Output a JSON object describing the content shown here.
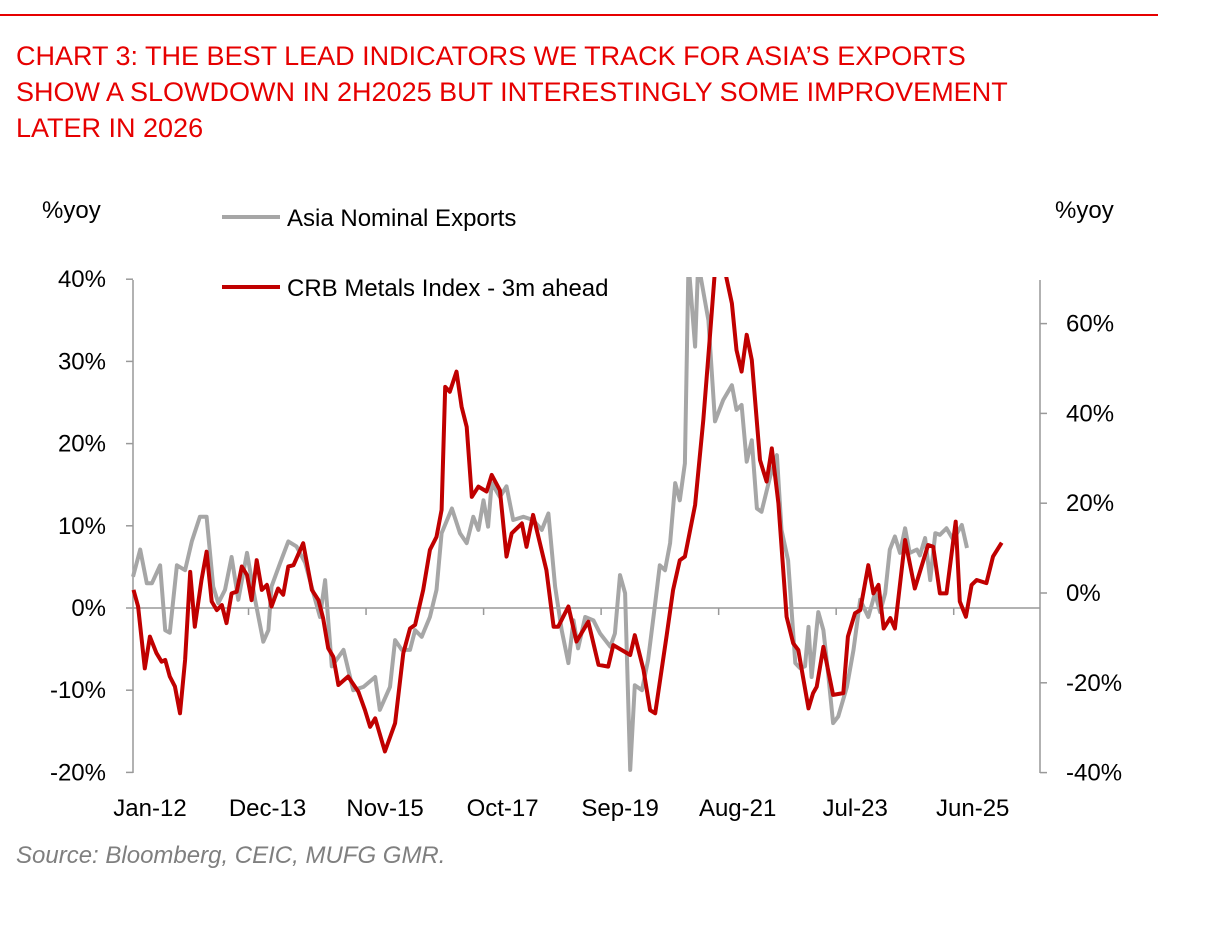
{
  "title_lines": [
    "CHART 3: THE BEST LEAD INDICATORS WE TRACK FOR ASIA’S EXPORTS",
    "SHOW A SLOWDOWN IN 2H2025 BUT INTERESTINGLY SOME IMPROVEMENT",
    "LATER IN 2026"
  ],
  "source": "Source: Bloomberg, CEIC, MUFG GMR.",
  "colors": {
    "accent": "#e60000",
    "gray_series": "#a6a6a6",
    "red_series": "#c00000",
    "axis": "#999999"
  },
  "chart_data": {
    "type": "line",
    "title": "CHART 3: THE BEST LEAD INDICATORS WE TRACK FOR ASIA’S EXPORTS SHOW A SLOWDOWN IN 2H2025 BUT INTERESTINGLY SOME IMPROVEMENT LATER IN 2026",
    "x_unit": "months since Jan-12",
    "x_tick_labels": [
      "Jan-12",
      "Dec-13",
      "Nov-15",
      "Oct-17",
      "Sep-19",
      "Aug-21",
      "Jul-23",
      "Jun-25"
    ],
    "ylabel_left": "%yoy",
    "ylabel_right": "%yoy",
    "ylim_left": [
      -20,
      40
    ],
    "ylim_right": [
      -40,
      70
    ],
    "y_ticks_left": [
      "-20%",
      "-10%",
      "0%",
      "10%",
      "20%",
      "30%",
      "40%"
    ],
    "y_ticks_right": [
      "-40%",
      "-20%",
      "0%",
      "20%",
      "40%",
      "60%"
    ],
    "legend_position": "top-left",
    "grid": false,
    "series": [
      {
        "name": "Asia Nominal Exports",
        "axis": "left",
        "color": "#a6a6a6",
        "points": [
          [
            0,
            3.8
          ],
          [
            1.4,
            7.1
          ],
          [
            2.7,
            3.0
          ],
          [
            3.7,
            3.0
          ],
          [
            5.3,
            5.2
          ],
          [
            6.3,
            -2.7
          ],
          [
            7.2,
            -3.0
          ],
          [
            8.6,
            5.2
          ],
          [
            10.2,
            4.6
          ],
          [
            11.5,
            8.1
          ],
          [
            13.1,
            11.1
          ],
          [
            14.4,
            11.1
          ],
          [
            15.7,
            2.6
          ],
          [
            16.7,
            0.6
          ],
          [
            18.0,
            2.2
          ],
          [
            19.3,
            6.2
          ],
          [
            20.6,
            1.0
          ],
          [
            22.3,
            6.7
          ],
          [
            23.9,
            1.0
          ],
          [
            25.5,
            -4.1
          ],
          [
            26.5,
            -2.7
          ],
          [
            27.1,
            2.6
          ],
          [
            28.8,
            5.5
          ],
          [
            30.4,
            8.1
          ],
          [
            32.0,
            7.5
          ],
          [
            33.7,
            5.5
          ],
          [
            35.3,
            1.8
          ],
          [
            36.6,
            -1.1
          ],
          [
            37.6,
            3.4
          ],
          [
            38.9,
            -7.1
          ],
          [
            41.2,
            -5.1
          ],
          [
            43.1,
            -10.0
          ],
          [
            45.1,
            -9.6
          ],
          [
            47.4,
            -8.4
          ],
          [
            48.3,
            -12.4
          ],
          [
            50.3,
            -9.6
          ],
          [
            51.3,
            -3.9
          ],
          [
            52.6,
            -5.1
          ],
          [
            54.2,
            -5.1
          ],
          [
            55.2,
            -2.7
          ],
          [
            56.5,
            -3.5
          ],
          [
            58.1,
            -1.1
          ],
          [
            59.4,
            2.2
          ],
          [
            60.4,
            9.1
          ],
          [
            62.4,
            12.1
          ],
          [
            64.0,
            9.1
          ],
          [
            65.3,
            7.9
          ],
          [
            66.6,
            11.1
          ],
          [
            67.6,
            9.5
          ],
          [
            68.6,
            13.1
          ],
          [
            69.5,
            9.9
          ],
          [
            70.2,
            15.2
          ],
          [
            71.8,
            13.5
          ],
          [
            73.1,
            14.8
          ],
          [
            74.4,
            10.7
          ],
          [
            76.4,
            11.1
          ],
          [
            78.3,
            10.7
          ],
          [
            80.0,
            9.5
          ],
          [
            81.3,
            11.5
          ],
          [
            82.6,
            2.6
          ],
          [
            83.9,
            -2.7
          ],
          [
            85.2,
            -6.7
          ],
          [
            86.2,
            -1.5
          ],
          [
            87.1,
            -4.9
          ],
          [
            88.5,
            -1.1
          ],
          [
            90.1,
            -1.5
          ],
          [
            91.4,
            -3.1
          ],
          [
            93.4,
            -4.7
          ],
          [
            94.3,
            -3.1
          ],
          [
            95.3,
            4.0
          ],
          [
            96.3,
            1.8
          ],
          [
            97.3,
            -19.7
          ],
          [
            98.2,
            -9.4
          ],
          [
            99.6,
            -10.0
          ],
          [
            100.8,
            -6.3
          ],
          [
            102.2,
            0.6
          ],
          [
            103.1,
            5.2
          ],
          [
            104.1,
            4.6
          ],
          [
            105.1,
            7.9
          ],
          [
            106.1,
            15.2
          ],
          [
            107.0,
            13.1
          ],
          [
            108.0,
            17.6
          ],
          [
            108.7,
            42
          ],
          [
            110.0,
            31.8
          ],
          [
            110.6,
            42
          ],
          [
            112.6,
            35.0
          ],
          [
            113.9,
            22.7
          ],
          [
            115.5,
            25.3
          ],
          [
            117.2,
            27.1
          ],
          [
            118.1,
            24.1
          ],
          [
            119.1,
            24.7
          ],
          [
            120.1,
            17.8
          ],
          [
            121.1,
            20.4
          ],
          [
            122.1,
            12.1
          ],
          [
            123.0,
            11.7
          ],
          [
            124.7,
            16.0
          ],
          [
            126.0,
            18.6
          ],
          [
            126.9,
            9.5
          ],
          [
            128.2,
            5.8
          ],
          [
            129.6,
            -6.7
          ],
          [
            130.5,
            -7.3
          ],
          [
            131.5,
            -7.1
          ],
          [
            132.2,
            -2.3
          ],
          [
            132.8,
            -8.4
          ],
          [
            134.1,
            -0.5
          ],
          [
            135.1,
            -2.7
          ],
          [
            136.1,
            -8.4
          ],
          [
            137.0,
            -14.0
          ],
          [
            138.0,
            -13.2
          ],
          [
            139.7,
            -9.6
          ],
          [
            141.0,
            -5.1
          ],
          [
            142.3,
            1.0
          ],
          [
            143.9,
            -1.1
          ],
          [
            145.2,
            1.8
          ],
          [
            146.2,
            -0.5
          ],
          [
            147.2,
            1.8
          ],
          [
            148.1,
            7.1
          ],
          [
            149.1,
            8.7
          ],
          [
            150.1,
            6.7
          ],
          [
            151.1,
            9.7
          ],
          [
            152.0,
            6.7
          ],
          [
            153.4,
            7.1
          ],
          [
            154.0,
            6.4
          ],
          [
            155.0,
            8.5
          ],
          [
            156.0,
            3.4
          ],
          [
            157.0,
            9.1
          ],
          [
            157.9,
            8.9
          ],
          [
            159.2,
            9.7
          ],
          [
            160.5,
            8.3
          ],
          [
            162.2,
            10.1
          ],
          [
            163.2,
            7.3
          ]
        ]
      },
      {
        "name": "CRB Metals Index - 3m ahead",
        "axis": "right",
        "color": "#c00000",
        "points": [
          [
            0.1,
            0.7
          ],
          [
            1.0,
            -3.0
          ],
          [
            2.3,
            -16.8
          ],
          [
            3.3,
            -9.7
          ],
          [
            4.6,
            -13.4
          ],
          [
            5.6,
            -15.3
          ],
          [
            6.3,
            -14.9
          ],
          [
            7.2,
            -18.6
          ],
          [
            8.2,
            -20.8
          ],
          [
            9.2,
            -26.8
          ],
          [
            10.2,
            -14.9
          ],
          [
            11.2,
            4.7
          ],
          [
            12.1,
            -7.5
          ],
          [
            13.4,
            2.9
          ],
          [
            14.4,
            9.2
          ],
          [
            15.4,
            -1.9
          ],
          [
            16.4,
            -3.8
          ],
          [
            17.4,
            -2.7
          ],
          [
            18.3,
            -6.7
          ],
          [
            19.3,
            -0.1
          ],
          [
            20.3,
            0.3
          ],
          [
            21.3,
            5.9
          ],
          [
            22.3,
            4.0
          ],
          [
            23.2,
            -1.6
          ],
          [
            24.2,
            7.3
          ],
          [
            25.2,
            0.7
          ],
          [
            26.2,
            1.8
          ],
          [
            27.1,
            -3.0
          ],
          [
            28.4,
            1.0
          ],
          [
            29.4,
            -0.4
          ],
          [
            30.4,
            5.9
          ],
          [
            31.4,
            6.2
          ],
          [
            33.3,
            11.1
          ],
          [
            35.0,
            0.7
          ],
          [
            36.3,
            -1.6
          ],
          [
            37.2,
            -5.6
          ],
          [
            38.2,
            -12.3
          ],
          [
            39.2,
            -14.2
          ],
          [
            40.2,
            -20.5
          ],
          [
            42.1,
            -18.6
          ],
          [
            44.1,
            -22.0
          ],
          [
            45.4,
            -26.1
          ],
          [
            46.4,
            -29.8
          ],
          [
            47.4,
            -27.9
          ],
          [
            49.3,
            -35.3
          ],
          [
            51.3,
            -29.0
          ],
          [
            52.9,
            -13.4
          ],
          [
            54.2,
            -7.9
          ],
          [
            55.2,
            -7.1
          ],
          [
            56.8,
            0.7
          ],
          [
            58.1,
            9.6
          ],
          [
            59.4,
            12.5
          ],
          [
            60.4,
            18.5
          ],
          [
            61.1,
            45.9
          ],
          [
            62.0,
            44.8
          ],
          [
            63.3,
            49.3
          ],
          [
            64.3,
            41.5
          ],
          [
            65.3,
            37.0
          ],
          [
            66.3,
            21.4
          ],
          [
            67.6,
            23.7
          ],
          [
            69.2,
            22.6
          ],
          [
            70.2,
            26.3
          ],
          [
            71.8,
            22.9
          ],
          [
            73.1,
            8.1
          ],
          [
            74.1,
            13.3
          ],
          [
            76.1,
            15.5
          ],
          [
            77.0,
            10.3
          ],
          [
            78.3,
            17.4
          ],
          [
            80.9,
            5.1
          ],
          [
            82.3,
            -7.5
          ],
          [
            83.2,
            -7.5
          ],
          [
            85.2,
            -3.0
          ],
          [
            86.8,
            -10.8
          ],
          [
            89.1,
            -6.4
          ],
          [
            91.1,
            -16.0
          ],
          [
            93.0,
            -16.4
          ],
          [
            94.0,
            -11.6
          ],
          [
            97.3,
            -13.8
          ],
          [
            98.2,
            -9.4
          ],
          [
            99.9,
            -17.1
          ],
          [
            101.2,
            -26.1
          ],
          [
            102.2,
            -26.8
          ],
          [
            104.4,
            -9.7
          ],
          [
            105.7,
            0.7
          ],
          [
            107.0,
            7.3
          ],
          [
            108.0,
            8.1
          ],
          [
            110.0,
            19.6
          ],
          [
            111.6,
            38.5
          ],
          [
            112.9,
            57.1
          ],
          [
            113.9,
            72
          ],
          [
            115.8,
            72
          ],
          [
            117.2,
            64.5
          ],
          [
            118.1,
            54.1
          ],
          [
            119.1,
            49.3
          ],
          [
            120.1,
            57.5
          ],
          [
            121.1,
            51.9
          ],
          [
            122.7,
            29.6
          ],
          [
            124.0,
            24.8
          ],
          [
            125.0,
            32.2
          ],
          [
            126.3,
            20.0
          ],
          [
            127.9,
            -5.3
          ],
          [
            129.2,
            -11.2
          ],
          [
            130.2,
            -12.7
          ],
          [
            132.2,
            -25.7
          ],
          [
            133.1,
            -22.3
          ],
          [
            133.8,
            -20.9
          ],
          [
            135.1,
            -12.0
          ],
          [
            137.0,
            -22.7
          ],
          [
            139.0,
            -22.3
          ],
          [
            139.9,
            -9.7
          ],
          [
            141.3,
            -4.5
          ],
          [
            142.3,
            -3.8
          ],
          [
            143.9,
            6.2
          ],
          [
            144.9,
            -0.1
          ],
          [
            145.9,
            1.8
          ],
          [
            146.9,
            -7.9
          ],
          [
            148.2,
            -5.6
          ],
          [
            149.1,
            -7.9
          ],
          [
            151.1,
            11.8
          ],
          [
            153.0,
            1.0
          ],
          [
            155.6,
            10.7
          ],
          [
            156.6,
            10.3
          ],
          [
            157.9,
            -0.1
          ],
          [
            159.2,
            -0.1
          ],
          [
            161.0,
            15.9
          ],
          [
            161.8,
            -1.9
          ],
          [
            163.0,
            -5.3
          ],
          [
            164.1,
            1.8
          ],
          [
            165.1,
            2.9
          ],
          [
            167.0,
            2.2
          ],
          [
            168.3,
            8.1
          ],
          [
            170.0,
            11.2
          ]
        ]
      }
    ]
  }
}
